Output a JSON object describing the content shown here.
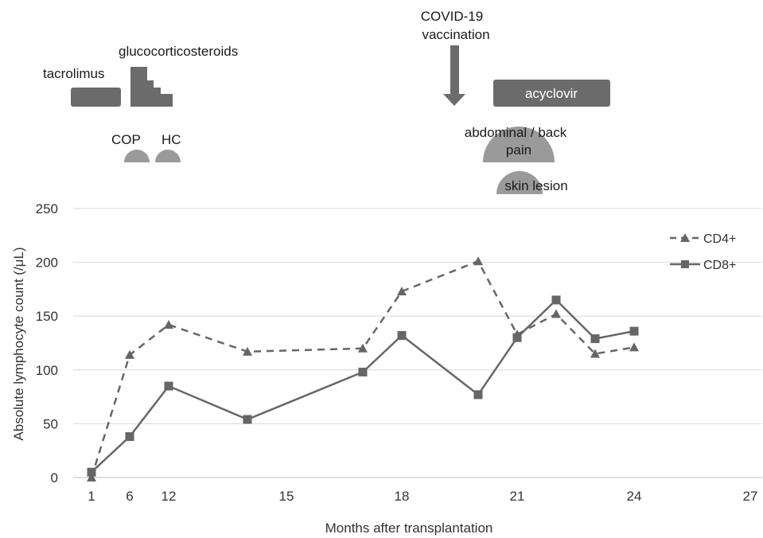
{
  "chart_data": {
    "type": "line",
    "xlabel": "Months after transplantation",
    "ylabel": "Absolute lymphocyte count (/μL)",
    "x_tick_labels": [
      "1",
      "6",
      "12",
      "15",
      "18",
      "21",
      "24",
      "27"
    ],
    "ylim": [
      0,
      250
    ],
    "y_ticks": [
      0,
      50,
      100,
      150,
      200,
      250
    ],
    "grid": "horizontal",
    "legend_position": "top-right",
    "series": [
      {
        "name": "CD4+",
        "style": "dashed",
        "marker": "triangle",
        "x": [
          1,
          6,
          12,
          14,
          17,
          18,
          20,
          21,
          22,
          23,
          24
        ],
        "y": [
          0,
          114,
          142,
          117,
          120,
          173,
          201,
          133,
          152,
          115,
          121
        ]
      },
      {
        "name": "CD8+",
        "style": "solid",
        "marker": "square",
        "x": [
          1,
          6,
          12,
          14,
          17,
          18,
          20,
          21,
          22,
          23,
          24
        ],
        "y": [
          5,
          38,
          85,
          54,
          98,
          132,
          77,
          130,
          165,
          129,
          136
        ]
      }
    ],
    "annotations": {
      "tacrolimus": "tacrolimus",
      "glucocorticosteroids": "glucocorticosteroids",
      "cop": "COP",
      "hc": "HC",
      "covid_line1": "COVID-19",
      "covid_line2": "vaccination",
      "acyclovir": "acyclovir",
      "abdominal_line1": "abdominal / back",
      "abdominal_line2": "pain",
      "skin_lesion": "skin lesion"
    },
    "colors": {
      "line": "#666666",
      "bar": "#6b6b6b",
      "dome": "#9a9a9a",
      "grid": "#d9d9d9"
    }
  }
}
